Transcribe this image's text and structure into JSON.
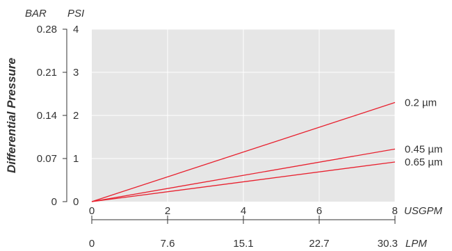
{
  "chart_data": {
    "type": "line",
    "title": "",
    "ylabel": "Differential Pressure",
    "x_primary": {
      "unit": "USGPM",
      "ticks": [
        "0",
        "2",
        "4",
        "6",
        "8"
      ],
      "range": [
        0,
        8
      ]
    },
    "x_secondary": {
      "unit": "LPM",
      "ticks": [
        "0",
        "7.6",
        "15.1",
        "22.7",
        "30.3"
      ]
    },
    "y_primary": {
      "unit": "PSI",
      "ticks": [
        "0",
        "1",
        "2",
        "3",
        "4"
      ],
      "range": [
        0,
        4
      ]
    },
    "y_secondary": {
      "unit": "BAR",
      "ticks": [
        "0",
        "0.07",
        "0.14",
        "0.21",
        "0.28"
      ]
    },
    "grid": true,
    "series": [
      {
        "name": "0.2 µm",
        "x": [
          0,
          8
        ],
        "y": [
          0,
          2.3
        ]
      },
      {
        "name": "0.45 µm",
        "x": [
          0,
          8
        ],
        "y": [
          0,
          1.22
        ]
      },
      {
        "name": "0.65 µm",
        "x": [
          0,
          8
        ],
        "y": [
          0,
          0.92
        ]
      }
    ],
    "colors": {
      "series": "#e8202e",
      "plot_background": "#e6e6e6",
      "grid": "#ffffff",
      "text": "#333333"
    }
  }
}
